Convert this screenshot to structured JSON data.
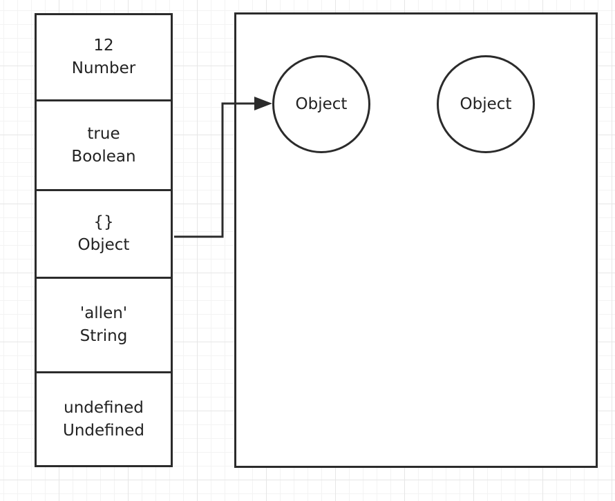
{
  "stack": {
    "cells": [
      {
        "value": "12",
        "type": "Number"
      },
      {
        "value": "true",
        "type": "Boolean"
      },
      {
        "value": "{}",
        "type": "Object"
      },
      {
        "value": "'allen'",
        "type": "String"
      },
      {
        "value": "undefined",
        "type": "Undefined"
      }
    ]
  },
  "heap": {
    "objects": [
      {
        "label": "Object"
      },
      {
        "label": "Object"
      }
    ]
  }
}
